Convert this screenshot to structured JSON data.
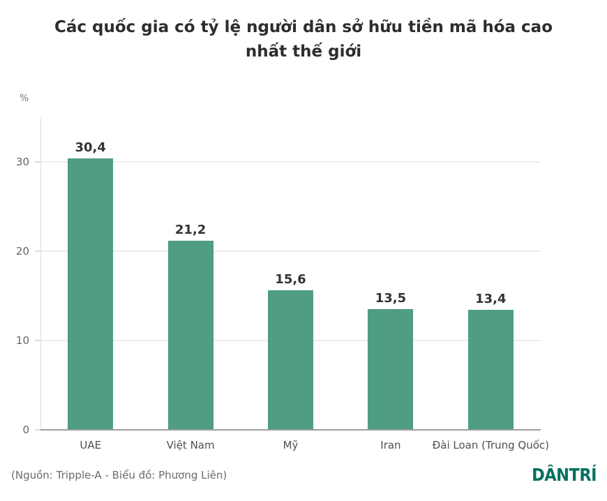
{
  "header": {
    "title_line1": "Các quốc gia có tỷ lệ người dân sở hữu tiền mã hóa cao",
    "title_line2": "nhất thế giới"
  },
  "chart_data": {
    "type": "bar",
    "title": "Các quốc gia có tỷ lệ người dân sở hữu tiền mã hóa cao nhất thế giới",
    "unit_label": "%",
    "categories": [
      "UAE",
      "Việt Nam",
      "Mỹ",
      "Iran",
      "Đài Loan (Trung Quốc)"
    ],
    "values": [
      30.4,
      21.2,
      15.6,
      13.5,
      13.4
    ],
    "value_labels": [
      "30,4",
      "21,2",
      "15,6",
      "13,5",
      "13,4"
    ],
    "yticks": [
      0,
      10,
      20,
      30
    ],
    "ylim": [
      0,
      35
    ],
    "xlabel": "",
    "ylabel": "%",
    "grid": true,
    "legend": "none",
    "bar_color": "#4f9d82"
  },
  "footer": {
    "source": "(Nguồn: Tripple-A - Biểu đồ: Phương Liên)",
    "logo_text": "DÂNTRÍ",
    "logo_color": "#00715e"
  }
}
